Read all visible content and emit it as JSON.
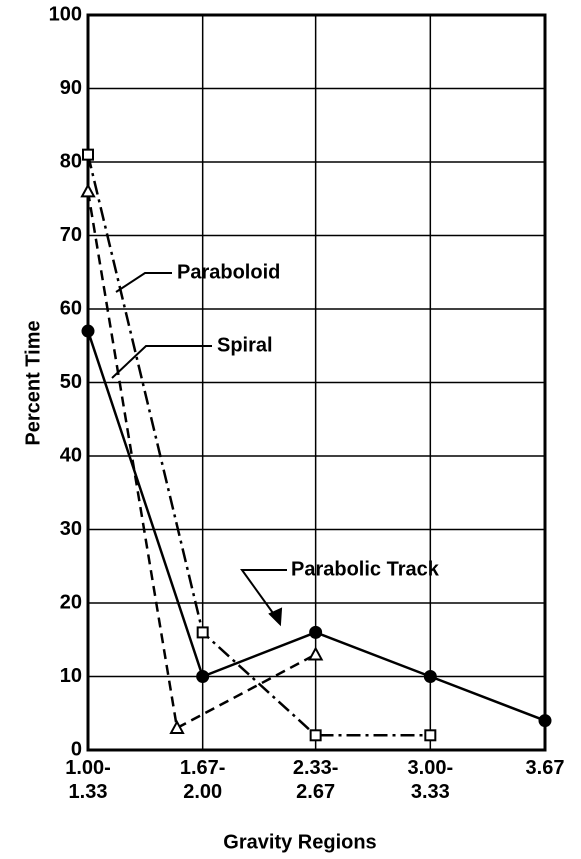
{
  "chart_data": {
    "type": "line",
    "xlabel": "Gravity Regions",
    "ylabel": "Percent Time",
    "xlim": [
      1.0,
      3.67
    ],
    "ylim": [
      0,
      100
    ],
    "xticks": [
      {
        "value": 1.0,
        "label": "1.00-\n1.33"
      },
      {
        "value": 1.67,
        "label": "1.67-\n2.00"
      },
      {
        "value": 2.33,
        "label": "2.33-\n2.67"
      },
      {
        "value": 3.0,
        "label": "3.00-\n3.33"
      },
      {
        "value": 3.67,
        "label": "3.67"
      }
    ],
    "yticks": [
      0,
      10,
      20,
      30,
      40,
      50,
      60,
      70,
      80,
      90,
      100
    ],
    "grid": true,
    "series": [
      {
        "name": "Paraboloid",
        "color": "#000000",
        "linestyle": "dashdot",
        "marker": "square",
        "x": [
          1.0,
          1.67,
          2.33,
          3.0
        ],
        "values": [
          81,
          16,
          2,
          2
        ]
      },
      {
        "name": "Spiral",
        "color": "#000000",
        "linestyle": "dashed",
        "marker": "triangle",
        "x": [
          1.0,
          1.52,
          2.33
        ],
        "values": [
          76,
          3,
          13
        ]
      },
      {
        "name": "Parabolic Track",
        "color": "#000000",
        "linestyle": "solid",
        "marker": "circle",
        "x": [
          1.0,
          1.67,
          2.33,
          3.0,
          3.67
        ],
        "values": [
          57,
          10,
          16,
          10,
          4
        ]
      }
    ]
  }
}
